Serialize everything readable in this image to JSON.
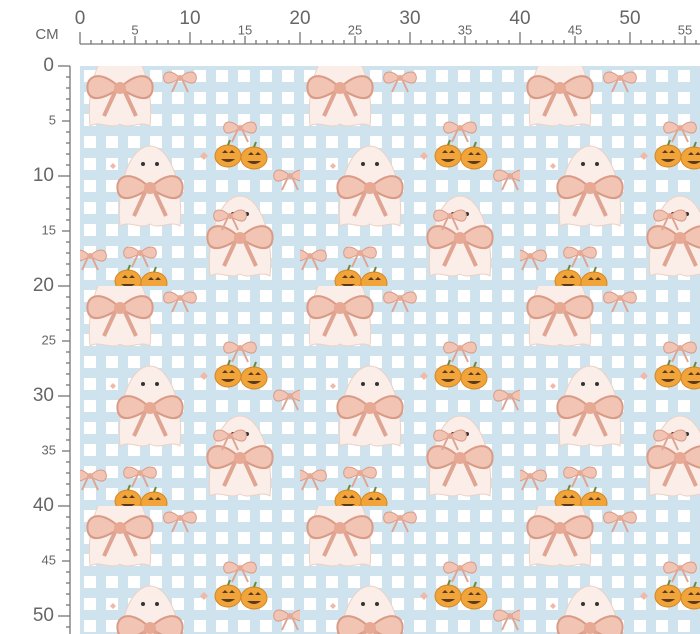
{
  "ruler": {
    "unit": "CM",
    "top": [
      0,
      5,
      10,
      15,
      20,
      25,
      30,
      35,
      40,
      45,
      50,
      55
    ],
    "left": [
      0,
      5,
      10,
      15,
      20,
      25,
      30,
      35,
      40,
      45,
      50
    ]
  }
}
